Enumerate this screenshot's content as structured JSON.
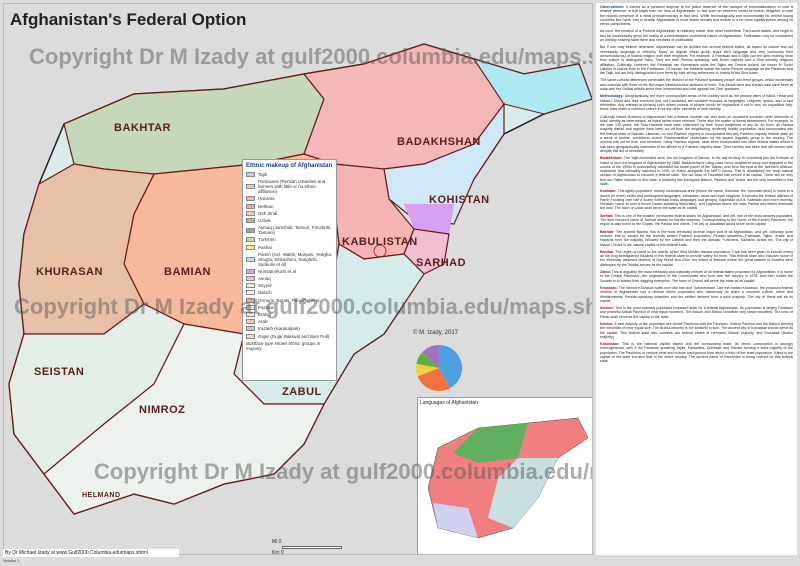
{
  "title": "Afghanistan's Federal Option",
  "watermark": "Copyright Dr M Izady at gulf2000.columbia.edu/maps.shtml",
  "credit": "By Dr Michael Izady at www.Gulf2000.Columbia.edu/maps.shtml",
  "signature": "© M. Izady, 2017",
  "version": "Version 1",
  "scale": {
    "mi": "Mi",
    "km": "Km",
    "zero": "0"
  },
  "regions": [
    "BAKHTAR",
    "BADAKHSHAN",
    "KOHISTAN",
    "KABULISTAN",
    "SARHAD",
    "KHURASAN",
    "BAMIAN",
    "ZABUL",
    "SEISTAN",
    "NIMROZ",
    "HELMAND"
  ],
  "legend": {
    "title": "Ethnic makeup of Afghanistan",
    "items": [
      {
        "label": "Tajik",
        "color": "#b8d8d0"
      },
      {
        "label": "Parsiwans (Persian urbanites and farmers with little or no ethnic affiliation)",
        "color": "#f6c7b0"
      },
      {
        "label": "Hazaras",
        "color": "#f7b89a"
      },
      {
        "label": "Dehkan",
        "color": "#f2a2a2"
      },
      {
        "label": "Deh Zindi",
        "color": "#f8c8c8"
      },
      {
        "label": "Uzbek",
        "color": "#a6c48a"
      },
      {
        "label": "Aymaq (Jamshidi, Taimuri, Firuzkuhi, Taimani)",
        "color": "#8fb07a"
      },
      {
        "label": "Turkmen",
        "color": "#c7d9a0"
      },
      {
        "label": "Pashai",
        "color": "#f5f070"
      },
      {
        "label": "Pamiri (incl. Wakhi, Munjani, Yedgha, Shugni, Ishkashimi, Sanglichi, Sarikulis et al)",
        "color": "#aee8f0"
      },
      {
        "label": "Nuristani/Kafir et al",
        "color": "#d8a0f0"
      },
      {
        "label": "Aimaq",
        "color": "#d0d0d0"
      },
      {
        "label": "Sayyid",
        "color": "#e8f0e0"
      },
      {
        "label": "Baluch",
        "color": "#ffffff"
      },
      {
        "label": "Ormuris, Baraki, Paracha, et al",
        "color": "#e0b060"
      },
      {
        "label": "Pashtun",
        "color": "#d9ecea"
      },
      {
        "label": "Brahui",
        "color": "#e8e8f8"
      },
      {
        "label": "Arab",
        "color": "#f0d0a0"
      },
      {
        "label": "Kazakh (Karakalpak)",
        "color": "#c0c0e0"
      },
      {
        "label": "Gujar (Gujar Bakrwal and Bani Pull)",
        "color": "#f0e0c0"
      }
    ],
    "note": "Boldface type shows ethnic groups in majority"
  },
  "inset": {
    "title": "Languages of Afghanistan"
  },
  "text": {
    "sections": [
      {
        "head": "Observations:",
        "body": "It comes as a pleasant surprise to the jaded observer of the ravages of ethnonationalism to note a relative absence of that blight from the land of Afghanistan. In fact such an observer would be further delighted to note the historic presence of a tribal protodemocracy in that land. While technologically and economically far behind young countries like Syria, Iraq or Arabia, Afghanistan is more stable socially and boasts to a far more egalitarianism among its ethnic components."
      },
      {
        "head": "",
        "body": "As such, the creation of a 'Federal Afghanistan' is relatively easier than other multiethnic Third-world states, and might in fact be unnecessary given the reality of a decentralized confederal nature of Afghanistan. Federalism may be considered an already existing state there and needless of codification."
      },
      {
        "head": "",
        "body": "But if one may believe otherwise, Afghanistan can be divided into several federal states, all based on culture and not necessarily language or ethnicity. Many an Afghan ethnic group share their language and very commonly their denomination(s) of Islamic religion with their neighbors. For example, a Parsiwan and a Tajik can tell upon nothing more than culture to distinguish them. They are both Persian speaking, with Sunni majority and a Shia minority religious affiliation. Culturally, however, the Parsiwan are Khurasanis while the Tajiks are Central Asians, far closer to Turkic Uzbeks in culture than to the Parsiwans. Of course, the Hazaras speak the same Persian language as the Parsiwan and the Tajik, but are fully distinguished from them by their strong adherence to Imami/Ja'fari Shia Islam."
      },
      {
        "head": "",
        "body": "The same cultural differences predicates the division of the Pashtun speaking people into three groups, which incidentally also coincide with three of the five major tribal/historical divisions of them. The Abdali west and Karlani east have been at odds with the Ghilzai middle since time immemorial and now against the 'Dari' speakers."
      },
      {
        "head": "Methodology:",
        "body": "Geographically, the more cosmopolitan areas of the country such as the primary cities of Kabul, Herat and Mazar-i Sharif and their environs (but not Kandahar) are veritable mosaics of languages, religions, genes, and in fact ethnicities. Any attempt at dividing such mixed crowds of people would be impractical if not in fact, an unjustified folly: these folks share a common culture if not the other elements of their identity."
      },
      {
        "head": "",
        "body": "Culturally based divisions of Afghanistan into a federal republic can and does on occasions consider other elements of folks' identity as determinant, as listed below when relevant. There also the matter of threat assessment. For example, in the past 130 years, the Shia Hazaras have been victimized by their Sunni neighbors of any ilk. As such, all Hazara majority district and regions have been cut off from the neighboring, evidently hostile population, and incorporated into the federal state of Bamian. Likewise, no non-Pashtun regions is incorporated into any Pashtun majority federal state as a result of routine, sometimes violent 'Pashtunization' undertaken by the largest linguistic group in the country. The reverse has not be true, and therefore, many Pashtun regions, have been incorporated into other federal states where it has been geographically untenable to be affixed to a Pashtun majority state. Their identity has been and will remain safe despite this act of necessity."
      },
      {
        "head": "Badakhshan:",
        "body": "The Tajik-dominated area -the old kingdom of Darvaz- is the last territory to voluntarily join the Emirate of Kabul to form the kingdom of Afghanistan by 1880. Badakhshan's ruling class never weathered away and reappear in the course of the 1990s to successfully withstand the brutal power of the Taliban, and form the seat of the 'Northern Alliance' resistance that ultimately marched in 2001 on Kabul alongside the NATO forces. This is doubtlessly the most natural section of Afghanistan to become a federal state. The old town of Faizabad has served it as capital. There will be very few non-Tajiks included in this state. A relatively few immigrant Baluch, Pashtun and 'Arabs' are the only minorities in this state."
      },
      {
        "head": "Kohistan:",
        "body": "This lightly-populated, heavily mountainous area (hence the name, Kohistan, the 'mountain land') is home to a dozen (or more) exotic and endangered languages, ethnicities, races and even religions. It includes the federal districts of Pamir (housing over half a dozen northeast Iranic languages and groups), Kapiristan (a.k.a. Kafiristan and more recently, Nuristan, home to over a dozen Dardic-speaking ethnicities), and Laghman where the Indic Pashai and others dominate the land. The town of Lokar shall serve the state as its capital."
      },
      {
        "head": "Sarhad:",
        "body": "This is one of the smaller, envisioned federal states for Afghanistan, and yet, one of the most densely populated. The time-honored name of Sarhad stands for border marches. Corresponding to the home of the Karlani Pashtuns, the region is also home to the Gujars, the Pashai and others. The city of Jalalabad would serve as its capital."
      },
      {
        "head": "Bakhtar:",
        "body": "The ancient Bactria, this is the most ethnically diverse major part of all Afghanistan, and yet, culturally quite uniform; that is, except for the recently settled Pashtun population. Persian speakers—Parsiwan, Tajiks, 'Arabs' and Hazaras form the majority, followed by the Uzbeks and then the Aimaqs, Turkmens, Kazakhs, Arabs etc. The city of Mazar-i Sharif is the natural capital of this federal state."
      },
      {
        "head": "Bamian:",
        "body": "The region is home to the mainly Ja'fari Shia Muslim Hazara population. Care has been given to include nearly all the long-beleaguered Hazaras in this federal state to provide safety for them. This federal state also includes some of the ethnically cleansed districts of Day Kundi and Ghor, the towns of Bamian where the great statues of Buddha were destroyed by the Taliban serves as the capital."
      },
      {
        "head": "Zabul:",
        "body": "This is arguably the most ethnically and culturally uniform of all federal states proposed for Afghanistan. It is home to the Ghilzai Pashtuns—the originators of the Communists who took over the country in 1978, and then invited the Soviets in to bolster their sagging enterprise. The town of Ghazni will serve the state as its capital."
      },
      {
        "head": "Khurasan:",
        "body": "The historic Khurasan splits over into Iran and Turkmenistan. Like the Iranian Khurasan, the proposed federal division of Afghanistan has a diverse ethnic population who historically do share a common culture, ethos and Mediterranean Persian-speaking urbanites and the settled farmers form a solid majority. The city of Herat will be its capital."
      },
      {
        "head": "Seistan:",
        "body": "This is the most sparsely populated proposed state for a federal Afghanistan. Its population is largely Parsiwan and peaceful Abdali Pashtun of near equal numbers. The Baluch and Brahui constitute only small minorities. The town of Farah shall serve as the capital of the state."
      },
      {
        "head": "Nimroz:",
        "body": "A vast majority of the population are Abdali Pashtuns with the Farsiwan, Ghilzai Pashtun and the Baluch forming the minorities of near equal size. The Brahui minority is the smallest in size. The ancient city of Kandahar should serve as the capital. This federal state also contains two federal states of Helmand, Baluch majority, and Shorabak (Brahui majority)."
      },
      {
        "head": "Kabulistan:",
        "body": "This is the national capital district and the surrounding state. Its ethnic composition is strongly heterogeneous, with a the Parsiwan speaking Tajiks, Parsiwans, Qizilbash and Hazara forming a solid majority of the population. The Pashtuns of various tribal and cultural background form about a third of the state population. Kabul is the capital of the state but also that of the entire country. The ancient name of Kabulistan is being revived for this federal state."
      }
    ]
  },
  "pie": {
    "values": [
      42,
      27,
      9,
      9,
      13
    ],
    "colors": [
      "#4aa0e0",
      "#f07040",
      "#f0d040",
      "#60b040",
      "#a070c0"
    ]
  }
}
